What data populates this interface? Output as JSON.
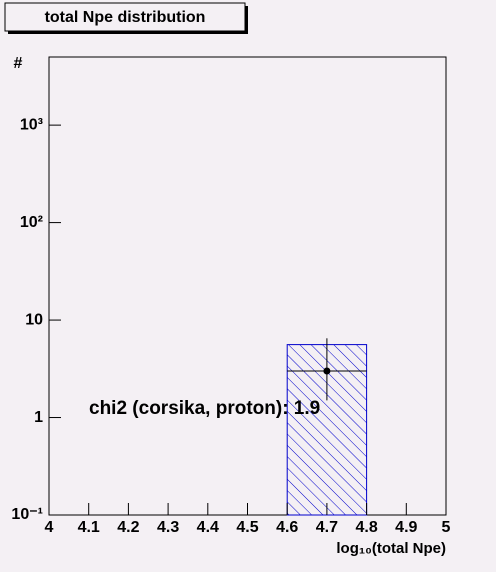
{
  "chart_data": {
    "type": "histogram",
    "title": "total Npe distribution",
    "xlabel": "log₁₀(total Npe)",
    "ylabel": "#",
    "annotation": "chi2 (corsika, proton): 1.9",
    "bins": [
      4.6,
      4.8
    ],
    "counts": [
      5.6
    ],
    "color": "#0000cc",
    "points": {
      "x": [
        4.7
      ],
      "y": [
        3
      ],
      "x_low": [
        4.6
      ],
      "x_high": [
        4.8
      ],
      "y_low": [
        1.5
      ],
      "y_high": [
        6.5
      ],
      "color": "#000000"
    },
    "xlim": [
      4,
      5
    ],
    "xticks": [
      4,
      4.1,
      4.2,
      4.3,
      4.4,
      4.5,
      4.6,
      4.7,
      4.8,
      4.9,
      5
    ],
    "ylim": [
      0.1,
      5000
    ],
    "log_y": true,
    "yticks": [
      {
        "value": 0.1,
        "label": "10⁻¹"
      },
      1,
      10,
      {
        "value": 100,
        "label": "10²"
      },
      {
        "value": 1000,
        "label": "10³"
      }
    ]
  }
}
